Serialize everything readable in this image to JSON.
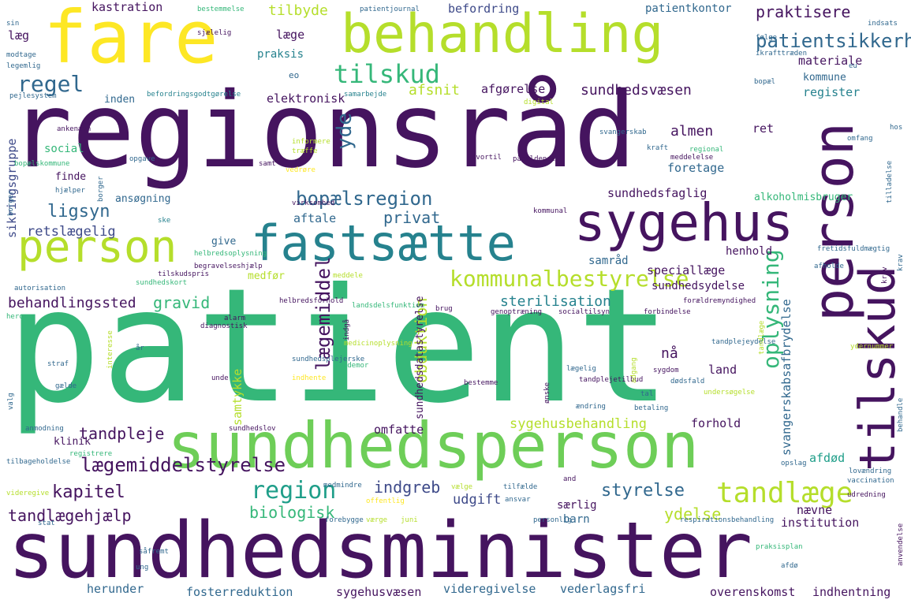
{
  "palette": {
    "dark_purple": "#45145f",
    "purple": "#482878",
    "indigo": "#3e4a89",
    "blue": "#31688e",
    "teal": "#26828e",
    "green_teal": "#1f9e89",
    "green": "#35b779",
    "light_green": "#6ece58",
    "lime": "#b5de2b",
    "yellow": "#fde725"
  },
  "words": [
    "regionsråd",
    "patient",
    "sundhedsminister",
    "sundhedsperson",
    "fare",
    "behandling",
    "sygehus",
    "fastsætte",
    "person",
    "tilskud",
    "regel",
    "kommunalbestyrelse",
    "patientsikkerhed",
    "praktisere",
    "tandlæge",
    "bopælsregion",
    "kapitel",
    "lægemiddelstyrelse",
    "tandlægehjælp",
    "region",
    "sundhedsstyrelse",
    "lov",
    "oplysning",
    "lægemiddel",
    "obduktion",
    "yde",
    "ligsyn",
    "retslægelig",
    "behandlingssted",
    "gravid",
    "indgreb",
    "styrelse",
    "biologisk",
    "tandpleje",
    "kastration",
    "tilbyde",
    "befordring",
    "patientkontor",
    "materiale",
    "afsnit",
    "afgørelse",
    "sundhedsvæsen",
    "register",
    "kommune",
    "elektronisk",
    "inden",
    "læge",
    "praksis",
    "læg",
    "social",
    "almen",
    "ret",
    "foretage",
    "sundhedsfaglig",
    "alkoholmisbruger",
    "sikringsgruppe",
    "ansøgning",
    "aftale",
    "privat",
    "finde",
    "give",
    "henhold",
    "speciallæge",
    "sundhedsydelse",
    "sterilisation",
    "samråd",
    "medfør",
    "svangerskabsafbrydelse",
    "nå",
    "land",
    "samtykke",
    "sundhedsdatastyrelse",
    "sygehusbehandling",
    "omfatte",
    "forhold",
    "klinik",
    "afdød",
    "nævne",
    "ydelse",
    "udgift",
    "særlig",
    "barn",
    "institution",
    "herunder",
    "fosterreduktion",
    "sygehusvæsen",
    "videregivelse",
    "vederlagsfri",
    "overenskomst",
    "indhentning",
    "patientjournal",
    "bestemmelse",
    "modtage",
    "legemlig",
    "sjælelig",
    "sin",
    "følge",
    "ikrafttræden",
    "indsats",
    "eu",
    "bopæl",
    "eo",
    "befordringsgodtgørelse",
    "samarbejde",
    "digital",
    "pejlesystem",
    "ankenævn",
    "informere",
    "træffe",
    "svangerskab",
    "kraft",
    "regional",
    "hos",
    "omfang",
    "opgave",
    "bopælskommune",
    "samt",
    "vedrøre",
    "hvortil",
    "pågældende",
    "meddelelse",
    "hjælper",
    "borger",
    "virksomhed",
    "ske",
    "kommunal",
    "tilladelse",
    "krav",
    "helbredsoplysning",
    "begravelseshjælp",
    "tilskudspris",
    "sundhedskort",
    "meddele",
    "fretidsfuldmægtig",
    "afholde",
    "autorisation",
    "herom",
    "helbredsforhold",
    "landsdelsfunktion",
    "brug",
    "genoptræning",
    "socialtilsyn",
    "forældremyndighed",
    "forbindelse",
    "diagnostisk",
    "alarm",
    "indgå",
    "år",
    "medicinoplysning",
    "interesse",
    "ønske",
    "tandlæge",
    "tandplejeydelse",
    "ydernummer",
    "valg",
    "straf",
    "sundhedsplejerske",
    "jordemor",
    "bestemme",
    "lægelig",
    "tandplejetilbud",
    "sygdom",
    "dødsfald",
    "gælde",
    "indhente",
    "unde",
    "adgang",
    "tal",
    "undersøgelse",
    "ændring",
    "betaling",
    "behandle",
    "anmodning",
    "sundhedslov",
    "registrere",
    "tilbageholdelse",
    "opslag",
    "lovændring",
    "and",
    "medmindre",
    "vælge",
    "tilfælde",
    "offentlig",
    "ansvar",
    "vaccination",
    "udredning",
    "videregive",
    "forebygge",
    "værge",
    "juni",
    "personlig",
    "respirationsbehandling",
    "stat",
    "anvendelse",
    "såfremt",
    "praksisplan",
    "ung",
    "afdø",
    "nødvendig",
    "de"
  ]
}
